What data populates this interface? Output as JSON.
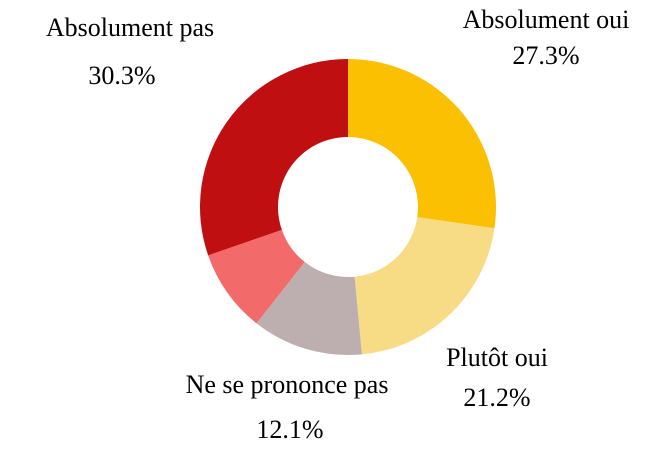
{
  "chart_data": {
    "type": "donut",
    "categories": [
      "Absolument oui",
      "Plutôt oui",
      "Ne se prononce pas",
      null,
      "Absolument pas"
    ],
    "values": [
      27.3,
      21.2,
      12.1,
      9.1,
      30.3
    ],
    "value_labels": [
      "27.3%",
      "21.2%",
      "12.1%",
      null,
      "30.3%"
    ],
    "colors": [
      "#fbc002",
      "#f7dc85",
      "#bdafaf",
      "#f26b6a",
      "#c00f10"
    ]
  }
}
